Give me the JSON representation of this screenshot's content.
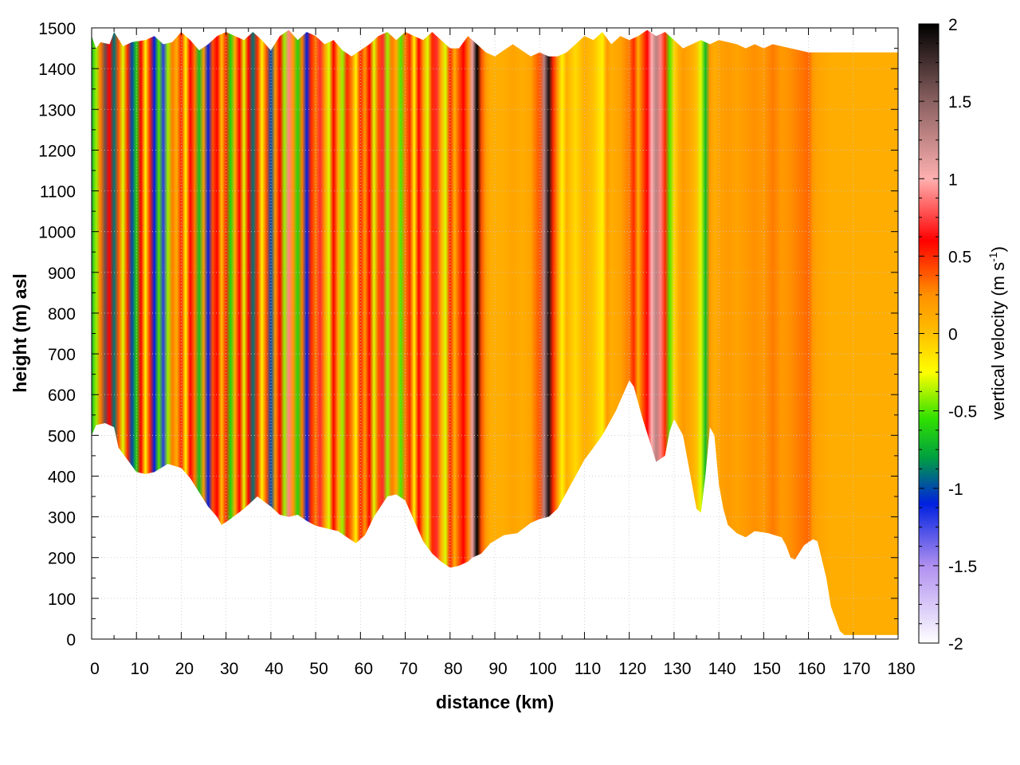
{
  "chart_data": {
    "type": "heatmap",
    "xlabel": "distance (km)",
    "ylabel": "height (m) asl",
    "xlim": [
      0,
      180
    ],
    "ylim": [
      0,
      1500
    ],
    "xticks": [
      0,
      10,
      20,
      30,
      40,
      50,
      60,
      70,
      80,
      90,
      100,
      110,
      120,
      130,
      140,
      150,
      160,
      170,
      180
    ],
    "yticks": [
      0,
      100,
      200,
      300,
      400,
      500,
      600,
      700,
      800,
      900,
      1000,
      1100,
      1200,
      1300,
      1400,
      1500
    ],
    "grid": true,
    "colorbar": {
      "label_main": "vertical velocity (m s",
      "label_sup": "-1",
      "label_close": ")",
      "range": [
        -2,
        2
      ],
      "ticks": [
        -2,
        -1.5,
        -1,
        -0.5,
        0,
        0.5,
        1,
        1.5,
        2
      ],
      "tick_labels": [
        "-2",
        "-1.5",
        "-1",
        "-0.5",
        "0",
        "0.5",
        "1",
        "1.5",
        "2"
      ],
      "stops": [
        {
          "v": -2.0,
          "c": "#ffffff"
        },
        {
          "v": -1.5,
          "c": "#b090f0"
        },
        {
          "v": -1.1,
          "c": "#0020e0"
        },
        {
          "v": -0.8,
          "c": "#00a040"
        },
        {
          "v": -0.55,
          "c": "#30e000"
        },
        {
          "v": -0.25,
          "c": "#ffff00"
        },
        {
          "v": 0.0,
          "c": "#ffc000"
        },
        {
          "v": 0.25,
          "c": "#ff9000"
        },
        {
          "v": 0.6,
          "c": "#ff0000"
        },
        {
          "v": 1.0,
          "c": "#ffb0b0"
        },
        {
          "v": 1.5,
          "c": "#8a6060"
        },
        {
          "v": 2.0,
          "c": "#000000"
        }
      ]
    },
    "terrain_bottom": [
      [
        0,
        500
      ],
      [
        1,
        525
      ],
      [
        3,
        530
      ],
      [
        5,
        520
      ],
      [
        6,
        470
      ],
      [
        8,
        440
      ],
      [
        10,
        410
      ],
      [
        12,
        405
      ],
      [
        14,
        410
      ],
      [
        17,
        430
      ],
      [
        20,
        420
      ],
      [
        22,
        395
      ],
      [
        24,
        360
      ],
      [
        26,
        325
      ],
      [
        28,
        300
      ],
      [
        29,
        280
      ],
      [
        31,
        295
      ],
      [
        34,
        320
      ],
      [
        37,
        350
      ],
      [
        40,
        325
      ],
      [
        42,
        305
      ],
      [
        44,
        300
      ],
      [
        46,
        305
      ],
      [
        48,
        290
      ],
      [
        50,
        278
      ],
      [
        53,
        270
      ],
      [
        55,
        265
      ],
      [
        57,
        250
      ],
      [
        59,
        235
      ],
      [
        61,
        255
      ],
      [
        63,
        300
      ],
      [
        66,
        350
      ],
      [
        68,
        355
      ],
      [
        70,
        340
      ],
      [
        72,
        290
      ],
      [
        74,
        240
      ],
      [
        76,
        210
      ],
      [
        78,
        190
      ],
      [
        80,
        175
      ],
      [
        82,
        180
      ],
      [
        84,
        190
      ],
      [
        85,
        200
      ],
      [
        87,
        210
      ],
      [
        89,
        235
      ],
      [
        92,
        255
      ],
      [
        95,
        260
      ],
      [
        98,
        285
      ],
      [
        100,
        295
      ],
      [
        102,
        300
      ],
      [
        104,
        320
      ],
      [
        106,
        360
      ],
      [
        108,
        400
      ],
      [
        110,
        440
      ],
      [
        112,
        470
      ],
      [
        114,
        500
      ],
      [
        117,
        560
      ],
      [
        119,
        610
      ],
      [
        120,
        635
      ],
      [
        121,
        620
      ],
      [
        123,
        540
      ],
      [
        125,
        470
      ],
      [
        126,
        435
      ],
      [
        128,
        450
      ],
      [
        129,
        510
      ],
      [
        130,
        540
      ],
      [
        132,
        500
      ],
      [
        133,
        440
      ],
      [
        134,
        380
      ],
      [
        135,
        320
      ],
      [
        136,
        310
      ],
      [
        137,
        400
      ],
      [
        138,
        520
      ],
      [
        139,
        500
      ],
      [
        140,
        380
      ],
      [
        141,
        320
      ],
      [
        142,
        280
      ],
      [
        144,
        260
      ],
      [
        146,
        250
      ],
      [
        148,
        265
      ],
      [
        151,
        260
      ],
      [
        154,
        250
      ],
      [
        155,
        230
      ],
      [
        156,
        200
      ],
      [
        157,
        195
      ],
      [
        159,
        230
      ],
      [
        161,
        245
      ],
      [
        162,
        240
      ],
      [
        164,
        150
      ],
      [
        165,
        80
      ],
      [
        166,
        50
      ],
      [
        167,
        20
      ],
      [
        168,
        10
      ],
      [
        180,
        10
      ]
    ],
    "terrain_top": [
      [
        0,
        1480
      ],
      [
        1,
        1450
      ],
      [
        2,
        1465
      ],
      [
        4,
        1460
      ],
      [
        5,
        1490
      ],
      [
        7,
        1455
      ],
      [
        9,
        1465
      ],
      [
        12,
        1470
      ],
      [
        14,
        1480
      ],
      [
        16,
        1460
      ],
      [
        18,
        1465
      ],
      [
        20,
        1490
      ],
      [
        22,
        1470
      ],
      [
        24,
        1445
      ],
      [
        26,
        1460
      ],
      [
        28,
        1480
      ],
      [
        30,
        1490
      ],
      [
        32,
        1480
      ],
      [
        34,
        1470
      ],
      [
        36,
        1490
      ],
      [
        38,
        1470
      ],
      [
        40,
        1445
      ],
      [
        42,
        1480
      ],
      [
        44,
        1495
      ],
      [
        46,
        1470
      ],
      [
        48,
        1490
      ],
      [
        50,
        1480
      ],
      [
        52,
        1460
      ],
      [
        54,
        1470
      ],
      [
        56,
        1445
      ],
      [
        58,
        1430
      ],
      [
        60,
        1445
      ],
      [
        62,
        1460
      ],
      [
        64,
        1480
      ],
      [
        66,
        1490
      ],
      [
        68,
        1470
      ],
      [
        70,
        1490
      ],
      [
        72,
        1480
      ],
      [
        74,
        1470
      ],
      [
        76,
        1490
      ],
      [
        78,
        1470
      ],
      [
        80,
        1450
      ],
      [
        82,
        1450
      ],
      [
        84,
        1480
      ],
      [
        86,
        1460
      ],
      [
        88,
        1440
      ],
      [
        90,
        1430
      ],
      [
        92,
        1445
      ],
      [
        94,
        1460
      ],
      [
        96,
        1445
      ],
      [
        98,
        1430
      ],
      [
        100,
        1440
      ],
      [
        102,
        1430
      ],
      [
        104,
        1430
      ],
      [
        106,
        1440
      ],
      [
        108,
        1460
      ],
      [
        110,
        1480
      ],
      [
        112,
        1470
      ],
      [
        114,
        1490
      ],
      [
        116,
        1460
      ],
      [
        118,
        1480
      ],
      [
        120,
        1470
      ],
      [
        122,
        1480
      ],
      [
        124,
        1495
      ],
      [
        126,
        1480
      ],
      [
        128,
        1490
      ],
      [
        130,
        1470
      ],
      [
        132,
        1450
      ],
      [
        134,
        1460
      ],
      [
        136,
        1470
      ],
      [
        138,
        1460
      ],
      [
        140,
        1470
      ],
      [
        142,
        1465
      ],
      [
        144,
        1460
      ],
      [
        146,
        1450
      ],
      [
        148,
        1460
      ],
      [
        150,
        1450
      ],
      [
        152,
        1460
      ],
      [
        154,
        1455
      ],
      [
        156,
        1450
      ],
      [
        158,
        1445
      ],
      [
        160,
        1440
      ],
      [
        180,
        1440
      ]
    ],
    "column_values": [
      [
        0,
        -0.7
      ],
      [
        1,
        -0.4
      ],
      [
        2,
        0.3
      ],
      [
        3,
        1.6
      ],
      [
        4,
        0.6
      ],
      [
        5,
        -0.9
      ],
      [
        6,
        0.4
      ],
      [
        7,
        -0.3
      ],
      [
        8,
        0.5
      ],
      [
        9,
        -1.0
      ],
      [
        10,
        -0.6
      ],
      [
        11,
        0.6
      ],
      [
        12,
        -0.2
      ],
      [
        13,
        0.5
      ],
      [
        14,
        -1.1
      ],
      [
        15,
        -0.5
      ],
      [
        16,
        -1.2
      ],
      [
        17,
        -0.4
      ],
      [
        18,
        0.3
      ],
      [
        19,
        0.1
      ],
      [
        20,
        0.5
      ],
      [
        21,
        -0.2
      ],
      [
        22,
        0.6
      ],
      [
        23,
        0.3
      ],
      [
        24,
        -0.7
      ],
      [
        25,
        0.2
      ],
      [
        26,
        -1.1
      ],
      [
        27,
        0.4
      ],
      [
        28,
        0.6
      ],
      [
        29,
        0.0
      ],
      [
        30,
        0.5
      ],
      [
        31,
        -0.6
      ],
      [
        32,
        0.1
      ],
      [
        33,
        0.6
      ],
      [
        34,
        -0.3
      ],
      [
        35,
        0.6
      ],
      [
        36,
        -0.9
      ],
      [
        37,
        0.5
      ],
      [
        38,
        -0.2
      ],
      [
        39,
        0.4
      ],
      [
        40,
        -1.0
      ],
      [
        41,
        0.2
      ],
      [
        42,
        0.6
      ],
      [
        43,
        -0.4
      ],
      [
        44,
        0.9
      ],
      [
        45,
        0.2
      ],
      [
        46,
        -0.6
      ],
      [
        47,
        0.3
      ],
      [
        48,
        -1.1
      ],
      [
        49,
        0.5
      ],
      [
        50,
        0.3
      ],
      [
        51,
        0.7
      ],
      [
        52,
        0.2
      ],
      [
        53,
        -0.3
      ],
      [
        54,
        0.6
      ],
      [
        55,
        0.1
      ],
      [
        56,
        -0.4
      ],
      [
        57,
        0.5
      ],
      [
        58,
        0.3
      ],
      [
        59,
        -0.2
      ],
      [
        60,
        0.5
      ],
      [
        61,
        0.2
      ],
      [
        62,
        0.6
      ],
      [
        63,
        -0.3
      ],
      [
        64,
        0.4
      ],
      [
        65,
        0.7
      ],
      [
        66,
        -0.4
      ],
      [
        67,
        0.3
      ],
      [
        68,
        0.1
      ],
      [
        69,
        -0.5
      ],
      [
        70,
        0.3
      ],
      [
        71,
        0.5
      ],
      [
        72,
        -0.2
      ],
      [
        73,
        0.6
      ],
      [
        74,
        0.2
      ],
      [
        75,
        -0.3
      ],
      [
        76,
        0.5
      ],
      [
        77,
        0.7
      ],
      [
        78,
        0.1
      ],
      [
        79,
        -0.3
      ],
      [
        80,
        0.5
      ],
      [
        81,
        0.1
      ],
      [
        82,
        0.4
      ],
      [
        83,
        0.6
      ],
      [
        84,
        0.3
      ],
      [
        85,
        1.1
      ],
      [
        86,
        2.0
      ],
      [
        87,
        0.4
      ],
      [
        88,
        0.2
      ],
      [
        89,
        0.1
      ],
      [
        90,
        0.1
      ],
      [
        92,
        0.1
      ],
      [
        94,
        0.15
      ],
      [
        96,
        0.1
      ],
      [
        98,
        0.15
      ],
      [
        100,
        0.4
      ],
      [
        101,
        1.3
      ],
      [
        102,
        1.9
      ],
      [
        103,
        0.5
      ],
      [
        104,
        0.2
      ],
      [
        105,
        -0.2
      ],
      [
        106,
        0.1
      ],
      [
        108,
        -0.1
      ],
      [
        110,
        0.1
      ],
      [
        112,
        0.0
      ],
      [
        114,
        -0.2
      ],
      [
        115,
        0.2
      ],
      [
        116,
        0.1
      ],
      [
        118,
        0.15
      ],
      [
        120,
        0.3
      ],
      [
        121,
        0.5
      ],
      [
        122,
        0.1
      ],
      [
        124,
        0.6
      ],
      [
        125,
        1.0
      ],
      [
        126,
        1.3
      ],
      [
        127,
        0.9
      ],
      [
        128,
        0.5
      ],
      [
        129,
        -0.5
      ],
      [
        130,
        -0.1
      ],
      [
        131,
        0.1
      ],
      [
        132,
        0.2
      ],
      [
        134,
        0.1
      ],
      [
        135,
        0.0
      ],
      [
        136,
        -0.3
      ],
      [
        137,
        -0.7
      ],
      [
        138,
        0.2
      ],
      [
        139,
        0.1
      ],
      [
        140,
        0.15
      ],
      [
        142,
        0.2
      ],
      [
        144,
        0.15
      ],
      [
        146,
        0.2
      ],
      [
        148,
        0.25
      ],
      [
        150,
        0.2
      ],
      [
        152,
        0.3
      ],
      [
        154,
        0.2
      ],
      [
        156,
        0.25
      ],
      [
        158,
        0.3
      ],
      [
        160,
        0.35
      ],
      [
        161,
        0.2
      ],
      [
        162,
        0.15
      ],
      [
        165,
        0.1
      ],
      [
        170,
        0.1
      ],
      [
        175,
        0.1
      ],
      [
        180,
        0.1
      ]
    ]
  }
}
